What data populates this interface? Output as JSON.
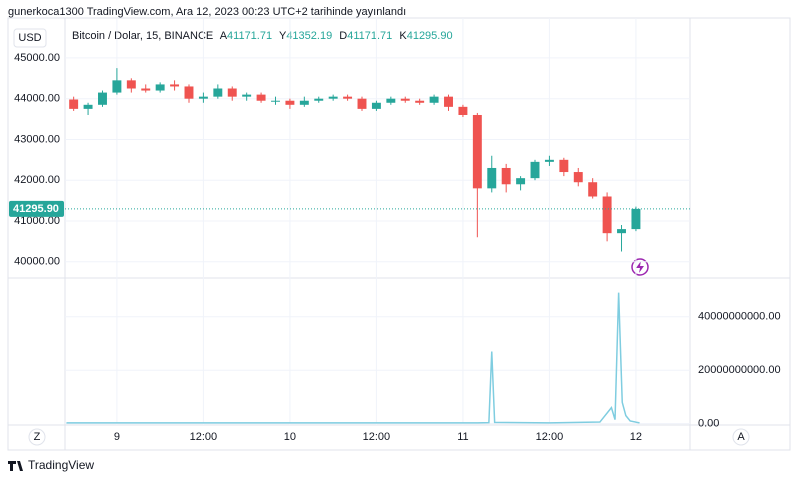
{
  "header": {
    "publisher": "gunerkoca1300 TradingView.com, Ara 12, 2023 00:23 UTC+2 tarihinde yayınlandı",
    "currency": "USD",
    "symbol": "Bitcoin / Dolar, 15, BINANCE",
    "ohlc": [
      {
        "key": "A",
        "value": "41171.71"
      },
      {
        "key": "Y",
        "value": "41352.19"
      },
      {
        "key": "D",
        "value": "41171.71"
      },
      {
        "key": "K",
        "value": "41295.90"
      }
    ]
  },
  "footer": {
    "brand": "TradingView",
    "left_button": "Z",
    "right_button": "A"
  },
  "chart_data": [
    {
      "type": "candlestick",
      "up_color": "#26a69a",
      "down_color": "#ef5350",
      "x": [
        -6,
        -4,
        -2,
        0,
        2,
        4,
        6,
        8,
        10,
        12,
        14,
        16,
        18,
        20,
        22,
        24,
        26,
        28,
        30,
        32,
        34,
        36,
        38,
        40,
        42,
        44,
        46,
        48,
        50,
        52,
        54,
        56,
        58,
        60,
        62,
        64,
        66,
        68,
        70,
        72
      ],
      "open": [
        43980,
        43750,
        43850,
        44150,
        44450,
        44250,
        44200,
        44350,
        44300,
        44000,
        44050,
        44250,
        44050,
        44100,
        43950,
        43950,
        43850,
        43950,
        44000,
        44050,
        44000,
        43750,
        43900,
        44000,
        43950,
        43900,
        44050,
        43800,
        43600,
        41800,
        42300,
        41900,
        42050,
        42450,
        42500,
        42200,
        41950,
        41600,
        40700,
        40800
      ],
      "high": [
        44050,
        43900,
        44200,
        44750,
        44500,
        44350,
        44400,
        44450,
        44350,
        44150,
        44350,
        44300,
        44150,
        44150,
        44050,
        44000,
        44050,
        44050,
        44100,
        44100,
        44050,
        43950,
        44050,
        44050,
        44000,
        44100,
        44100,
        43850,
        43650,
        42600,
        42400,
        42100,
        42500,
        42600,
        42550,
        42300,
        42050,
        41700,
        40900,
        41352
      ],
      "low": [
        43700,
        43600,
        43800,
        44100,
        44150,
        44150,
        44150,
        44200,
        43900,
        43900,
        44000,
        43950,
        43950,
        43900,
        43850,
        43750,
        43800,
        43900,
        43950,
        43950,
        43700,
        43700,
        43850,
        43900,
        43850,
        43850,
        43700,
        43550,
        40600,
        41700,
        41700,
        41750,
        42000,
        42350,
        42100,
        41850,
        41550,
        40500,
        40250,
        40750
      ],
      "close": [
        43750,
        43850,
        44150,
        44450,
        44250,
        44200,
        44350,
        44300,
        44000,
        44050,
        44250,
        44050,
        44100,
        43950,
        43950,
        43850,
        43950,
        44000,
        44050,
        44000,
        43750,
        43900,
        44000,
        43950,
        43900,
        44050,
        43800,
        43600,
        41800,
        42300,
        41900,
        42050,
        42450,
        42500,
        42200,
        41950,
        41600,
        40700,
        40800,
        41296
      ],
      "xlim": [
        -7.2,
        79.5
      ],
      "xticks": [
        {
          "value": 0,
          "label": "9"
        },
        {
          "value": 12,
          "label": "12:00"
        },
        {
          "value": 24,
          "label": "10"
        },
        {
          "value": 36,
          "label": "12:00"
        },
        {
          "value": 48,
          "label": "11"
        },
        {
          "value": 60,
          "label": "12:00"
        },
        {
          "value": 72,
          "label": "12"
        }
      ],
      "ylim": [
        39600,
        45980
      ],
      "yticks": [
        {
          "value": 40000,
          "label": "40000.00"
        },
        {
          "value": 41000,
          "label": "41000.00"
        },
        {
          "value": 42000,
          "label": "42000.00"
        },
        {
          "value": 43000,
          "label": "43000.00"
        },
        {
          "value": 44000,
          "label": "44000.00"
        },
        {
          "value": 45000,
          "label": "45000.00"
        }
      ],
      "last_price": {
        "value": 41295.9,
        "label": "41295.90"
      }
    },
    {
      "type": "line",
      "xlim": [
        -7.2,
        79.5
      ],
      "x": [
        -7,
        0,
        10,
        20,
        30,
        40,
        50,
        51.6,
        52,
        52.4,
        60,
        67,
        68.6,
        69.1,
        69.6,
        70.1,
        70.6,
        71.2,
        72.5
      ],
      "series": [
        {
          "color": "#7fcde0",
          "values": [
            300000000,
            300000000,
            300000000,
            300000000,
            300000000,
            300000000,
            300000000,
            400000000,
            27000000000,
            500000000,
            300000000,
            600000000,
            6000000000,
            1500000000,
            49000000000,
            8000000000,
            3000000000,
            1000000000,
            300000000
          ]
        }
      ],
      "ylim": [
        -500000000,
        54500000000
      ],
      "yticks": [
        {
          "value": 0,
          "label": "0.00"
        },
        {
          "value": 20000000000,
          "label": "20000000000.00"
        },
        {
          "value": 40000000000,
          "label": "40000000000.00"
        }
      ]
    }
  ]
}
